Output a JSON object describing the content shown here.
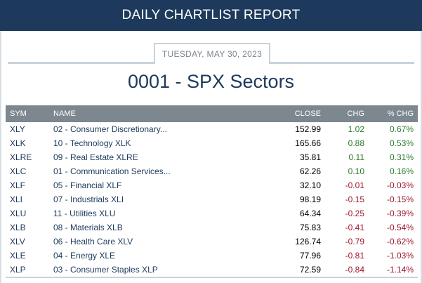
{
  "header": {
    "title": "DAILY CHARTLIST REPORT"
  },
  "report": {
    "date": "TUESDAY, MAY 30, 2023",
    "title": "0001 - SPX Sectors"
  },
  "table": {
    "columns": [
      "SYM",
      "NAME",
      "CLOSE",
      "CHG",
      "% CHG"
    ],
    "rows": [
      {
        "sym": "XLY",
        "name": "02 - Consumer Discretionary...",
        "close": "152.99",
        "chg": "1.02",
        "pct": "0.67%",
        "dir": "up"
      },
      {
        "sym": "XLK",
        "name": "10 - Technology XLK",
        "close": "165.66",
        "chg": "0.88",
        "pct": "0.53%",
        "dir": "up"
      },
      {
        "sym": "XLRE",
        "name": "09 - Real Estate XLRE",
        "close": "35.81",
        "chg": "0.11",
        "pct": "0.31%",
        "dir": "up"
      },
      {
        "sym": "XLC",
        "name": "01 - Communication Services...",
        "close": "62.26",
        "chg": "0.10",
        "pct": "0.16%",
        "dir": "up"
      },
      {
        "sym": "XLF",
        "name": "05 - Financial XLF",
        "close": "32.10",
        "chg": "-0.01",
        "pct": "-0.03%",
        "dir": "down"
      },
      {
        "sym": "XLI",
        "name": "07 - Industrials XLI",
        "close": "98.19",
        "chg": "-0.15",
        "pct": "-0.15%",
        "dir": "down"
      },
      {
        "sym": "XLU",
        "name": "11 - Utilities XLU",
        "close": "64.34",
        "chg": "-0.25",
        "pct": "-0.39%",
        "dir": "down"
      },
      {
        "sym": "XLB",
        "name": "08 - Materials XLB",
        "close": "75.83",
        "chg": "-0.41",
        "pct": "-0.54%",
        "dir": "down"
      },
      {
        "sym": "XLV",
        "name": "06 - Health Care XLV",
        "close": "126.74",
        "chg": "-0.79",
        "pct": "-0.62%",
        "dir": "down"
      },
      {
        "sym": "XLE",
        "name": "04 - Energy XLE",
        "close": "77.96",
        "chg": "-0.81",
        "pct": "-1.03%",
        "dir": "down"
      },
      {
        "sym": "XLP",
        "name": "03 - Consumer Staples XLP",
        "close": "72.59",
        "chg": "-0.84",
        "pct": "-1.14%",
        "dir": "down"
      }
    ]
  },
  "colors": {
    "header_bg": "#1d3a5c",
    "table_header_bg": "#7d8790",
    "positive": "#2b7a2b",
    "negative": "#a0162a"
  }
}
